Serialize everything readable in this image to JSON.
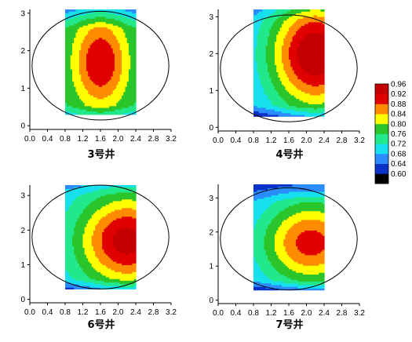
{
  "chart_data": [
    {
      "type": "heatmap",
      "title": "3号井",
      "xticks": [
        "0.0",
        "0.4",
        "0.8",
        "1.2",
        "1.6",
        "2.0",
        "2.4",
        "2.8",
        "3.2"
      ],
      "yticks": [
        "0",
        "1",
        "2",
        "3"
      ],
      "xlim": [
        0,
        3.2
      ],
      "ylim": [
        -0.1,
        3.1
      ],
      "data_x_range": [
        0.8,
        2.4
      ],
      "data_y_range": [
        0.3,
        3.1
      ],
      "ellipse": {
        "cx": 1.6,
        "cy": 1.6,
        "rx": 1.55,
        "ry": 1.45
      },
      "peak": {
        "x": 1.6,
        "y": 1.7,
        "value": 0.92,
        "sx": 0.45,
        "sy": 0.9
      },
      "base": 0.74,
      "y_decay": {
        "threshold": 2.6,
        "rate": 0.18
      },
      "bottom_decay": {
        "threshold": 0.55,
        "rate": 0.22
      }
    },
    {
      "type": "heatmap",
      "title": "4号井",
      "xticks": [
        "0.0",
        "0.4",
        "0.8",
        "1.2",
        "1.6",
        "2.0",
        "2.4",
        "2.8",
        "3.2"
      ],
      "yticks": [
        "0",
        "1",
        "2",
        "3"
      ],
      "xlim": [
        0,
        3.2
      ],
      "ylim": [
        -0.1,
        3.2
      ],
      "data_x_range": [
        0.8,
        2.4
      ],
      "data_y_range": [
        0.3,
        3.2
      ],
      "ellipse": {
        "cx": 1.6,
        "cy": 1.6,
        "rx": 1.55,
        "ry": 1.45
      },
      "peak": {
        "x": 2.2,
        "y": 2.0,
        "value": 0.96,
        "sx": 0.75,
        "sy": 1.1
      },
      "base": 0.66,
      "y_decay": {
        "threshold": 2.9,
        "rate": 0.1
      },
      "bottom_decay": {
        "threshold": 0.6,
        "rate": 0.25
      }
    },
    {
      "type": "heatmap",
      "title": "6号井",
      "xticks": [
        "0.0",
        "0.4",
        "0.8",
        "1.2",
        "1.6",
        "2.0",
        "2.4",
        "2.8",
        "3.2"
      ],
      "yticks": [
        "0",
        "1",
        "2",
        "3"
      ],
      "xlim": [
        0,
        3.2
      ],
      "ylim": [
        -0.1,
        3.3
      ],
      "data_x_range": [
        0.8,
        2.4
      ],
      "data_y_range": [
        0.3,
        3.3
      ],
      "ellipse": {
        "cx": 1.6,
        "cy": 1.8,
        "rx": 1.55,
        "ry": 1.5
      },
      "peak": {
        "x": 2.2,
        "y": 1.7,
        "value": 0.94,
        "sx": 0.8,
        "sy": 0.95
      },
      "base": 0.68,
      "y_decay": {
        "threshold": 3.0,
        "rate": 0.1
      },
      "bottom_decay": {
        "threshold": 0.6,
        "rate": 0.25
      }
    },
    {
      "type": "heatmap",
      "title": "7号井",
      "xticks": [
        "0.0",
        "0.4",
        "0.8",
        "1.2",
        "1.6",
        "2.0",
        "2.4",
        "2.8",
        "3.2"
      ],
      "yticks": [
        "0",
        "1",
        "2",
        "3"
      ],
      "xlim": [
        0,
        3.2
      ],
      "ylim": [
        -0.1,
        3.4
      ],
      "data_x_range": [
        0.8,
        2.4
      ],
      "data_y_range": [
        0.3,
        3.4
      ],
      "ellipse": {
        "cx": 1.6,
        "cy": 1.8,
        "rx": 1.55,
        "ry": 1.5
      },
      "peak": {
        "x": 2.1,
        "y": 1.7,
        "value": 0.9,
        "sx": 0.8,
        "sy": 0.9
      },
      "base": 0.66,
      "y_decay": {
        "threshold": 2.9,
        "rate": 0.12
      },
      "bottom_decay": {
        "threshold": 0.6,
        "rate": 0.25
      }
    }
  ],
  "colorbar": {
    "labels": [
      "0.60",
      "0.64",
      "0.68",
      "0.72",
      "0.76",
      "0.80",
      "0.84",
      "0.88",
      "0.92",
      "0.96"
    ],
    "levels": [
      0.56,
      0.6,
      0.64,
      0.68,
      0.72,
      0.76,
      0.8,
      0.84,
      0.88,
      0.92,
      0.96
    ],
    "colors": [
      "#000000",
      "#0a32c8",
      "#2a8cff",
      "#16e0ee",
      "#22e88c",
      "#2ac52a",
      "#ffff00",
      "#ff8c00",
      "#e00000",
      "#c40000"
    ]
  }
}
